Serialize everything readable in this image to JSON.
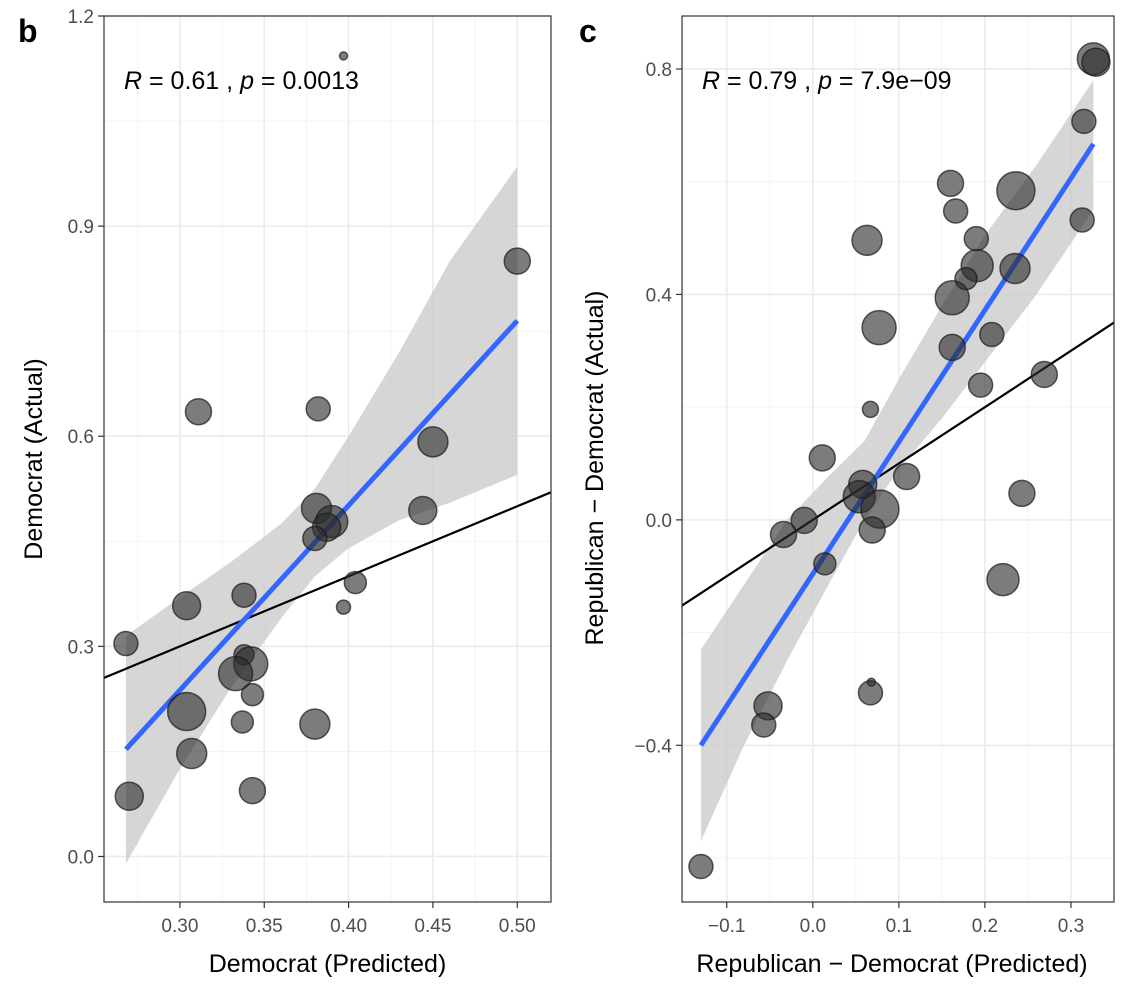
{
  "chart_data": [
    {
      "type": "scatter",
      "panel_label": "b",
      "xlabel": "Democrat (Predicted)",
      "ylabel": "Democrat (Actual)",
      "xlim": [
        0.255,
        0.52
      ],
      "ylim": [
        -0.065,
        1.2
      ],
      "x_ticks": [
        0.3,
        0.35,
        0.4,
        0.45,
        0.5
      ],
      "x_tick_labels": [
        "0.30",
        "0.35",
        "0.40",
        "0.45",
        "0.50"
      ],
      "y_ticks": [
        0.0,
        0.3,
        0.6,
        0.9,
        1.2
      ],
      "y_tick_labels": [
        "0.0",
        "0.3",
        "0.6",
        "0.9",
        "1.2"
      ],
      "annotation": {
        "r_label": "R",
        "r_text": " = 0.61 , ",
        "p_label": "p",
        "p_text": " = 0.0013"
      },
      "points": [
        {
          "x": 0.397,
          "y": 1.143,
          "size": 4
        },
        {
          "x": 0.5,
          "y": 0.85,
          "size": 13
        },
        {
          "x": 0.311,
          "y": 0.635,
          "size": 13
        },
        {
          "x": 0.382,
          "y": 0.639,
          "size": 12
        },
        {
          "x": 0.45,
          "y": 0.592,
          "size": 15
        },
        {
          "x": 0.381,
          "y": 0.497,
          "size": 15
        },
        {
          "x": 0.39,
          "y": 0.478,
          "size": 16
        },
        {
          "x": 0.387,
          "y": 0.47,
          "size": 14
        },
        {
          "x": 0.444,
          "y": 0.494,
          "size": 14
        },
        {
          "x": 0.38,
          "y": 0.454,
          "size": 12
        },
        {
          "x": 0.404,
          "y": 0.391,
          "size": 11
        },
        {
          "x": 0.397,
          "y": 0.356,
          "size": 7
        },
        {
          "x": 0.338,
          "y": 0.373,
          "size": 12
        },
        {
          "x": 0.304,
          "y": 0.358,
          "size": 14
        },
        {
          "x": 0.268,
          "y": 0.304,
          "size": 12
        },
        {
          "x": 0.338,
          "y": 0.288,
          "size": 10
        },
        {
          "x": 0.342,
          "y": 0.275,
          "size": 17
        },
        {
          "x": 0.333,
          "y": 0.261,
          "size": 17
        },
        {
          "x": 0.343,
          "y": 0.231,
          "size": 11
        },
        {
          "x": 0.304,
          "y": 0.207,
          "size": 19
        },
        {
          "x": 0.337,
          "y": 0.192,
          "size": 11
        },
        {
          "x": 0.38,
          "y": 0.189,
          "size": 15
        },
        {
          "x": 0.307,
          "y": 0.147,
          "size": 15
        },
        {
          "x": 0.343,
          "y": 0.094,
          "size": 13
        },
        {
          "x": 0.27,
          "y": 0.086,
          "size": 14
        }
      ],
      "fit_line": {
        "x": [
          0.268,
          0.5
        ],
        "y": [
          0.153,
          0.765
        ],
        "color": "#3366ff"
      },
      "confidence_band": {
        "x": [
          0.268,
          0.3,
          0.33,
          0.36,
          0.38,
          0.4,
          0.43,
          0.46,
          0.5
        ],
        "lower": [
          -0.01,
          0.125,
          0.24,
          0.34,
          0.4,
          0.44,
          0.48,
          0.505,
          0.545
        ],
        "upper": [
          0.315,
          0.37,
          0.42,
          0.475,
          0.525,
          0.6,
          0.72,
          0.85,
          0.985
        ],
        "color": "#cccccc"
      },
      "identity_line": {
        "x": [
          0.255,
          0.52
        ],
        "y": [
          0.255,
          0.52
        ],
        "color": "#000000"
      }
    },
    {
      "type": "scatter",
      "panel_label": "c",
      "xlabel": "Republican − Democrat (Predicted)",
      "ylabel": "Republican − Democrat (Actual)",
      "xlim": [
        -0.152,
        0.35
      ],
      "ylim": [
        -0.678,
        0.894
      ],
      "x_ticks": [
        -0.1,
        0.0,
        0.1,
        0.2,
        0.3
      ],
      "x_tick_labels": [
        "−0.1",
        "0.0",
        "0.1",
        "0.2",
        "0.3"
      ],
      "y_ticks": [
        -0.4,
        0.0,
        0.4,
        0.8
      ],
      "y_tick_labels": [
        "−0.4",
        "0.0",
        "0.4",
        "0.8"
      ],
      "annotation": {
        "r_label": "R",
        "r_text": " = 0.79 , ",
        "p_label": "p",
        "p_text": " = 7.9e−09"
      },
      "points": [
        {
          "x": 0.326,
          "y": 0.818,
          "size": 16
        },
        {
          "x": 0.329,
          "y": 0.812,
          "size": 14
        },
        {
          "x": 0.315,
          "y": 0.707,
          "size": 12
        },
        {
          "x": 0.313,
          "y": 0.532,
          "size": 12
        },
        {
          "x": 0.16,
          "y": 0.597,
          "size": 13
        },
        {
          "x": 0.236,
          "y": 0.584,
          "size": 19
        },
        {
          "x": 0.166,
          "y": 0.548,
          "size": 12
        },
        {
          "x": 0.19,
          "y": 0.499,
          "size": 12
        },
        {
          "x": 0.063,
          "y": 0.496,
          "size": 15
        },
        {
          "x": 0.191,
          "y": 0.451,
          "size": 16
        },
        {
          "x": 0.235,
          "y": 0.446,
          "size": 15
        },
        {
          "x": 0.178,
          "y": 0.428,
          "size": 11
        },
        {
          "x": 0.162,
          "y": 0.394,
          "size": 17
        },
        {
          "x": 0.077,
          "y": 0.341,
          "size": 17
        },
        {
          "x": 0.208,
          "y": 0.329,
          "size": 12
        },
        {
          "x": 0.162,
          "y": 0.306,
          "size": 13
        },
        {
          "x": 0.269,
          "y": 0.258,
          "size": 13
        },
        {
          "x": 0.195,
          "y": 0.239,
          "size": 12
        },
        {
          "x": 0.067,
          "y": 0.196,
          "size": 8
        },
        {
          "x": 0.011,
          "y": 0.11,
          "size": 13
        },
        {
          "x": 0.109,
          "y": 0.077,
          "size": 13
        },
        {
          "x": 0.058,
          "y": 0.063,
          "size": 14
        },
        {
          "x": 0.054,
          "y": 0.041,
          "size": 16
        },
        {
          "x": 0.078,
          "y": 0.019,
          "size": 19
        },
        {
          "x": -0.01,
          "y": -0.001,
          "size": 13
        },
        {
          "x": 0.069,
          "y": -0.018,
          "size": 13
        },
        {
          "x": -0.034,
          "y": -0.026,
          "size": 13
        },
        {
          "x": 0.243,
          "y": 0.047,
          "size": 13
        },
        {
          "x": 0.014,
          "y": -0.078,
          "size": 11
        },
        {
          "x": 0.221,
          "y": -0.106,
          "size": 16
        },
        {
          "x": 0.068,
          "y": -0.288,
          "size": 4
        },
        {
          "x": 0.067,
          "y": -0.307,
          "size": 12
        },
        {
          "x": -0.052,
          "y": -0.33,
          "size": 14
        },
        {
          "x": -0.057,
          "y": -0.364,
          "size": 12
        },
        {
          "x": -0.13,
          "y": -0.615,
          "size": 12
        }
      ],
      "fit_line": {
        "x": [
          -0.13,
          0.326
        ],
        "y": [
          -0.4,
          0.667
        ],
        "color": "#3366ff"
      },
      "confidence_band": {
        "x": [
          -0.13,
          -0.08,
          -0.03,
          0.02,
          0.06,
          0.1,
          0.15,
          0.2,
          0.26,
          0.326
        ],
        "lower": [
          -0.57,
          -0.4,
          -0.25,
          -0.11,
          0.0,
          0.09,
          0.18,
          0.28,
          0.4,
          0.55
        ],
        "upper": [
          -0.23,
          -0.115,
          0.0,
          0.08,
          0.14,
          0.25,
          0.38,
          0.505,
          0.63,
          0.78
        ],
        "color": "#cccccc"
      },
      "identity_line": {
        "x": [
          -0.152,
          0.35
        ],
        "y": [
          -0.152,
          0.35
        ],
        "color": "#000000"
      }
    }
  ]
}
